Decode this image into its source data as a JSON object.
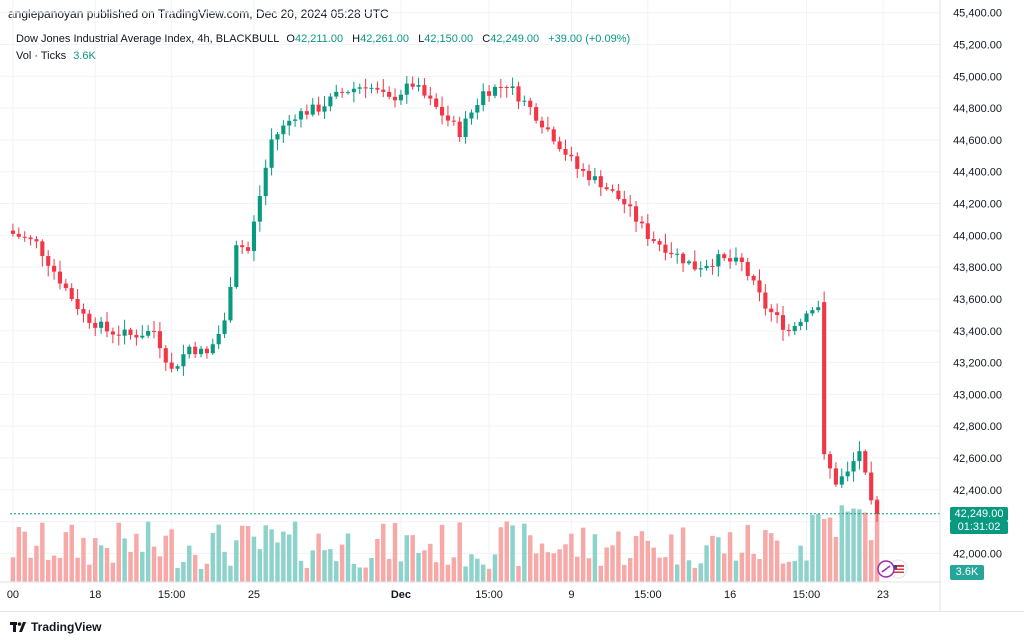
{
  "header": {
    "published": "angiepanoyan published on TradingView.com, Dec 20, 2024 05:28 UTC"
  },
  "legend": {
    "symbol": "Dow Jones Industrial Average Index, 4h, BLACKBULL",
    "o_key": "O",
    "o": "42,211.00",
    "h_key": "H",
    "h": "42,261.00",
    "l_key": "L",
    "l": "42,150.00",
    "c_key": "C",
    "c": "42,249.00",
    "change": "+39.00 (+0.09%)",
    "vol_label": "Vol · Ticks",
    "vol_value": "3.6K"
  },
  "price_tags": {
    "last_price": "42,249.00",
    "countdown": "01:31:02",
    "volume": "3.6K"
  },
  "footer": {
    "brand": "TradingView"
  },
  "colors": {
    "up": "#089981",
    "down": "#f23645",
    "up_vol": "#8dd3cc",
    "down_vol": "#f7a9a7",
    "grid": "#f0f3fa"
  },
  "chart_data": {
    "type": "candlestick",
    "title": "Dow Jones Industrial Average Index, 4h, BLACKBULL",
    "y_ticks": [
      "45,400.00",
      "45,200.00",
      "45,000.00",
      "44,800.00",
      "44,600.00",
      "44,400.00",
      "44,200.00",
      "44,000.00",
      "43,800.00",
      "43,600.00",
      "43,400.00",
      "43,200.00",
      "43,000.00",
      "42,800.00",
      "42,600.00",
      "42,400.00",
      "42,200.00",
      "42,000.00"
    ],
    "y_tick_values": [
      45400,
      45200,
      45000,
      44800,
      44600,
      44400,
      44200,
      44000,
      43800,
      43600,
      43400,
      43200,
      43000,
      42800,
      42600,
      42400,
      42200,
      42000
    ],
    "x_ticks": [
      "00",
      "18",
      "15:00",
      "25",
      "Dec",
      "15:00",
      "9",
      "15:00",
      "16",
      "15:00",
      "23"
    ],
    "ylim": [
      41820,
      45480
    ],
    "last_close": 42249,
    "candle_count": 148,
    "waypoints": [
      [
        0,
        44010
      ],
      [
        4,
        43950
      ],
      [
        8,
        43720
      ],
      [
        12,
        43500
      ],
      [
        16,
        43400
      ],
      [
        20,
        43370
      ],
      [
        24,
        43400
      ],
      [
        27,
        43150
      ],
      [
        30,
        43300
      ],
      [
        33,
        43250
      ],
      [
        36,
        43450
      ],
      [
        38,
        43960
      ],
      [
        40,
        43900
      ],
      [
        44,
        44600
      ],
      [
        48,
        44760
      ],
      [
        52,
        44800
      ],
      [
        56,
        44900
      ],
      [
        60,
        44950
      ],
      [
        64,
        44850
      ],
      [
        68,
        44950
      ],
      [
        72,
        44800
      ],
      [
        76,
        44650
      ],
      [
        80,
        44900
      ],
      [
        84,
        44950
      ],
      [
        88,
        44800
      ],
      [
        92,
        44620
      ],
      [
        96,
        44420
      ],
      [
        100,
        44330
      ],
      [
        104,
        44200
      ],
      [
        108,
        44000
      ],
      [
        112,
        43900
      ],
      [
        116,
        43800
      ],
      [
        120,
        43850
      ],
      [
        124,
        43820
      ],
      [
        128,
        43550
      ],
      [
        132,
        43400
      ],
      [
        136,
        43560
      ],
      [
        137,
        43560
      ],
      [
        138,
        42600
      ],
      [
        140,
        42450
      ],
      [
        142,
        42500
      ],
      [
        144,
        42650
      ],
      [
        146,
        42300
      ],
      [
        147,
        42249
      ]
    ],
    "volume_axis_max": 4700
  }
}
